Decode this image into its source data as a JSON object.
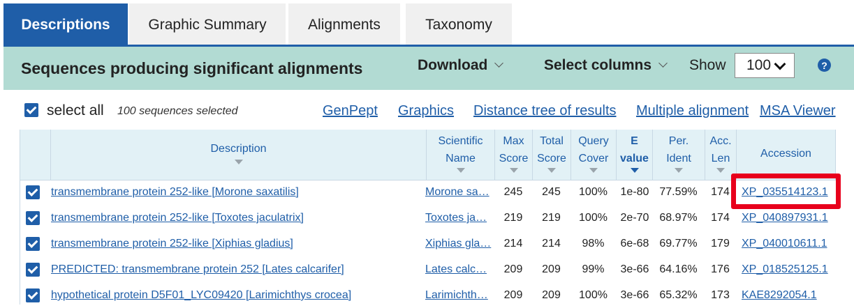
{
  "tabs": [
    {
      "label": "Descriptions",
      "active": true
    },
    {
      "label": "Graphic Summary",
      "active": false
    },
    {
      "label": "Alignments",
      "active": false
    },
    {
      "label": "Taxonomy",
      "active": false
    }
  ],
  "header": {
    "title": "Sequences producing significant alignments",
    "download_label": "Download",
    "select_columns_label": "Select columns",
    "show_label": "Show",
    "show_value": "100",
    "help_glyph": "?"
  },
  "toolbar": {
    "select_all_label": "select all",
    "selected_note": "100 sequences selected",
    "links": [
      "GenPept",
      "Graphics",
      "Distance tree of results",
      "Multiple alignment",
      "MSA Viewer"
    ]
  },
  "columns": {
    "description": "Description",
    "scientific_name": [
      "Scientific",
      "Name"
    ],
    "max_score": [
      "Max",
      "Score"
    ],
    "total_score": [
      "Total",
      "Score"
    ],
    "query_cover": [
      "Query",
      "Cover"
    ],
    "e_value": [
      "E",
      "value"
    ],
    "per_ident": [
      "Per.",
      "Ident"
    ],
    "acc_len": [
      "Acc.",
      "Len"
    ],
    "accession": "Accession"
  },
  "rows": [
    {
      "description": "transmembrane protein 252-like [Morone saxatilis]",
      "scientific_name": "Morone sa…",
      "max_score": "245",
      "total_score": "245",
      "query_cover": "100%",
      "e_value": "1e-80",
      "per_ident": "77.59%",
      "acc_len": "174",
      "accession": "XP_035514123.1",
      "checked": true
    },
    {
      "description": "transmembrane protein 252-like [Toxotes jaculatrix]",
      "scientific_name": "Toxotes ja…",
      "max_score": "219",
      "total_score": "219",
      "query_cover": "100%",
      "e_value": "2e-70",
      "per_ident": "68.97%",
      "acc_len": "174",
      "accession": "XP_040897931.1",
      "checked": true
    },
    {
      "description": "transmembrane protein 252-like [Xiphias gladius]",
      "scientific_name": "Xiphias gla…",
      "max_score": "214",
      "total_score": "214",
      "query_cover": "98%",
      "e_value": "6e-68",
      "per_ident": "69.77%",
      "acc_len": "179",
      "accession": "XP_040010611.1",
      "checked": true
    },
    {
      "description": "PREDICTED: transmembrane protein 252 [Lates calcarifer]",
      "scientific_name": "Lates calc…",
      "max_score": "209",
      "total_score": "209",
      "query_cover": "99%",
      "e_value": "3e-66",
      "per_ident": "64.16%",
      "acc_len": "176",
      "accession": "XP_018525125.1",
      "checked": true
    },
    {
      "description": "hypothetical protein D5F01_LYC09420 [Larimichthys crocea]",
      "scientific_name": "Larimichth…",
      "max_score": "209",
      "total_score": "209",
      "query_cover": "100%",
      "e_value": "3e-66",
      "per_ident": "65.32%",
      "acc_len": "173",
      "accession": "KAE8292054.1",
      "checked": true
    }
  ],
  "colors": {
    "primary": "#1f5ea8",
    "header_bg": "#b2dbd3",
    "table_head_bg": "#e2f1f6",
    "highlight": "#e8001c"
  }
}
